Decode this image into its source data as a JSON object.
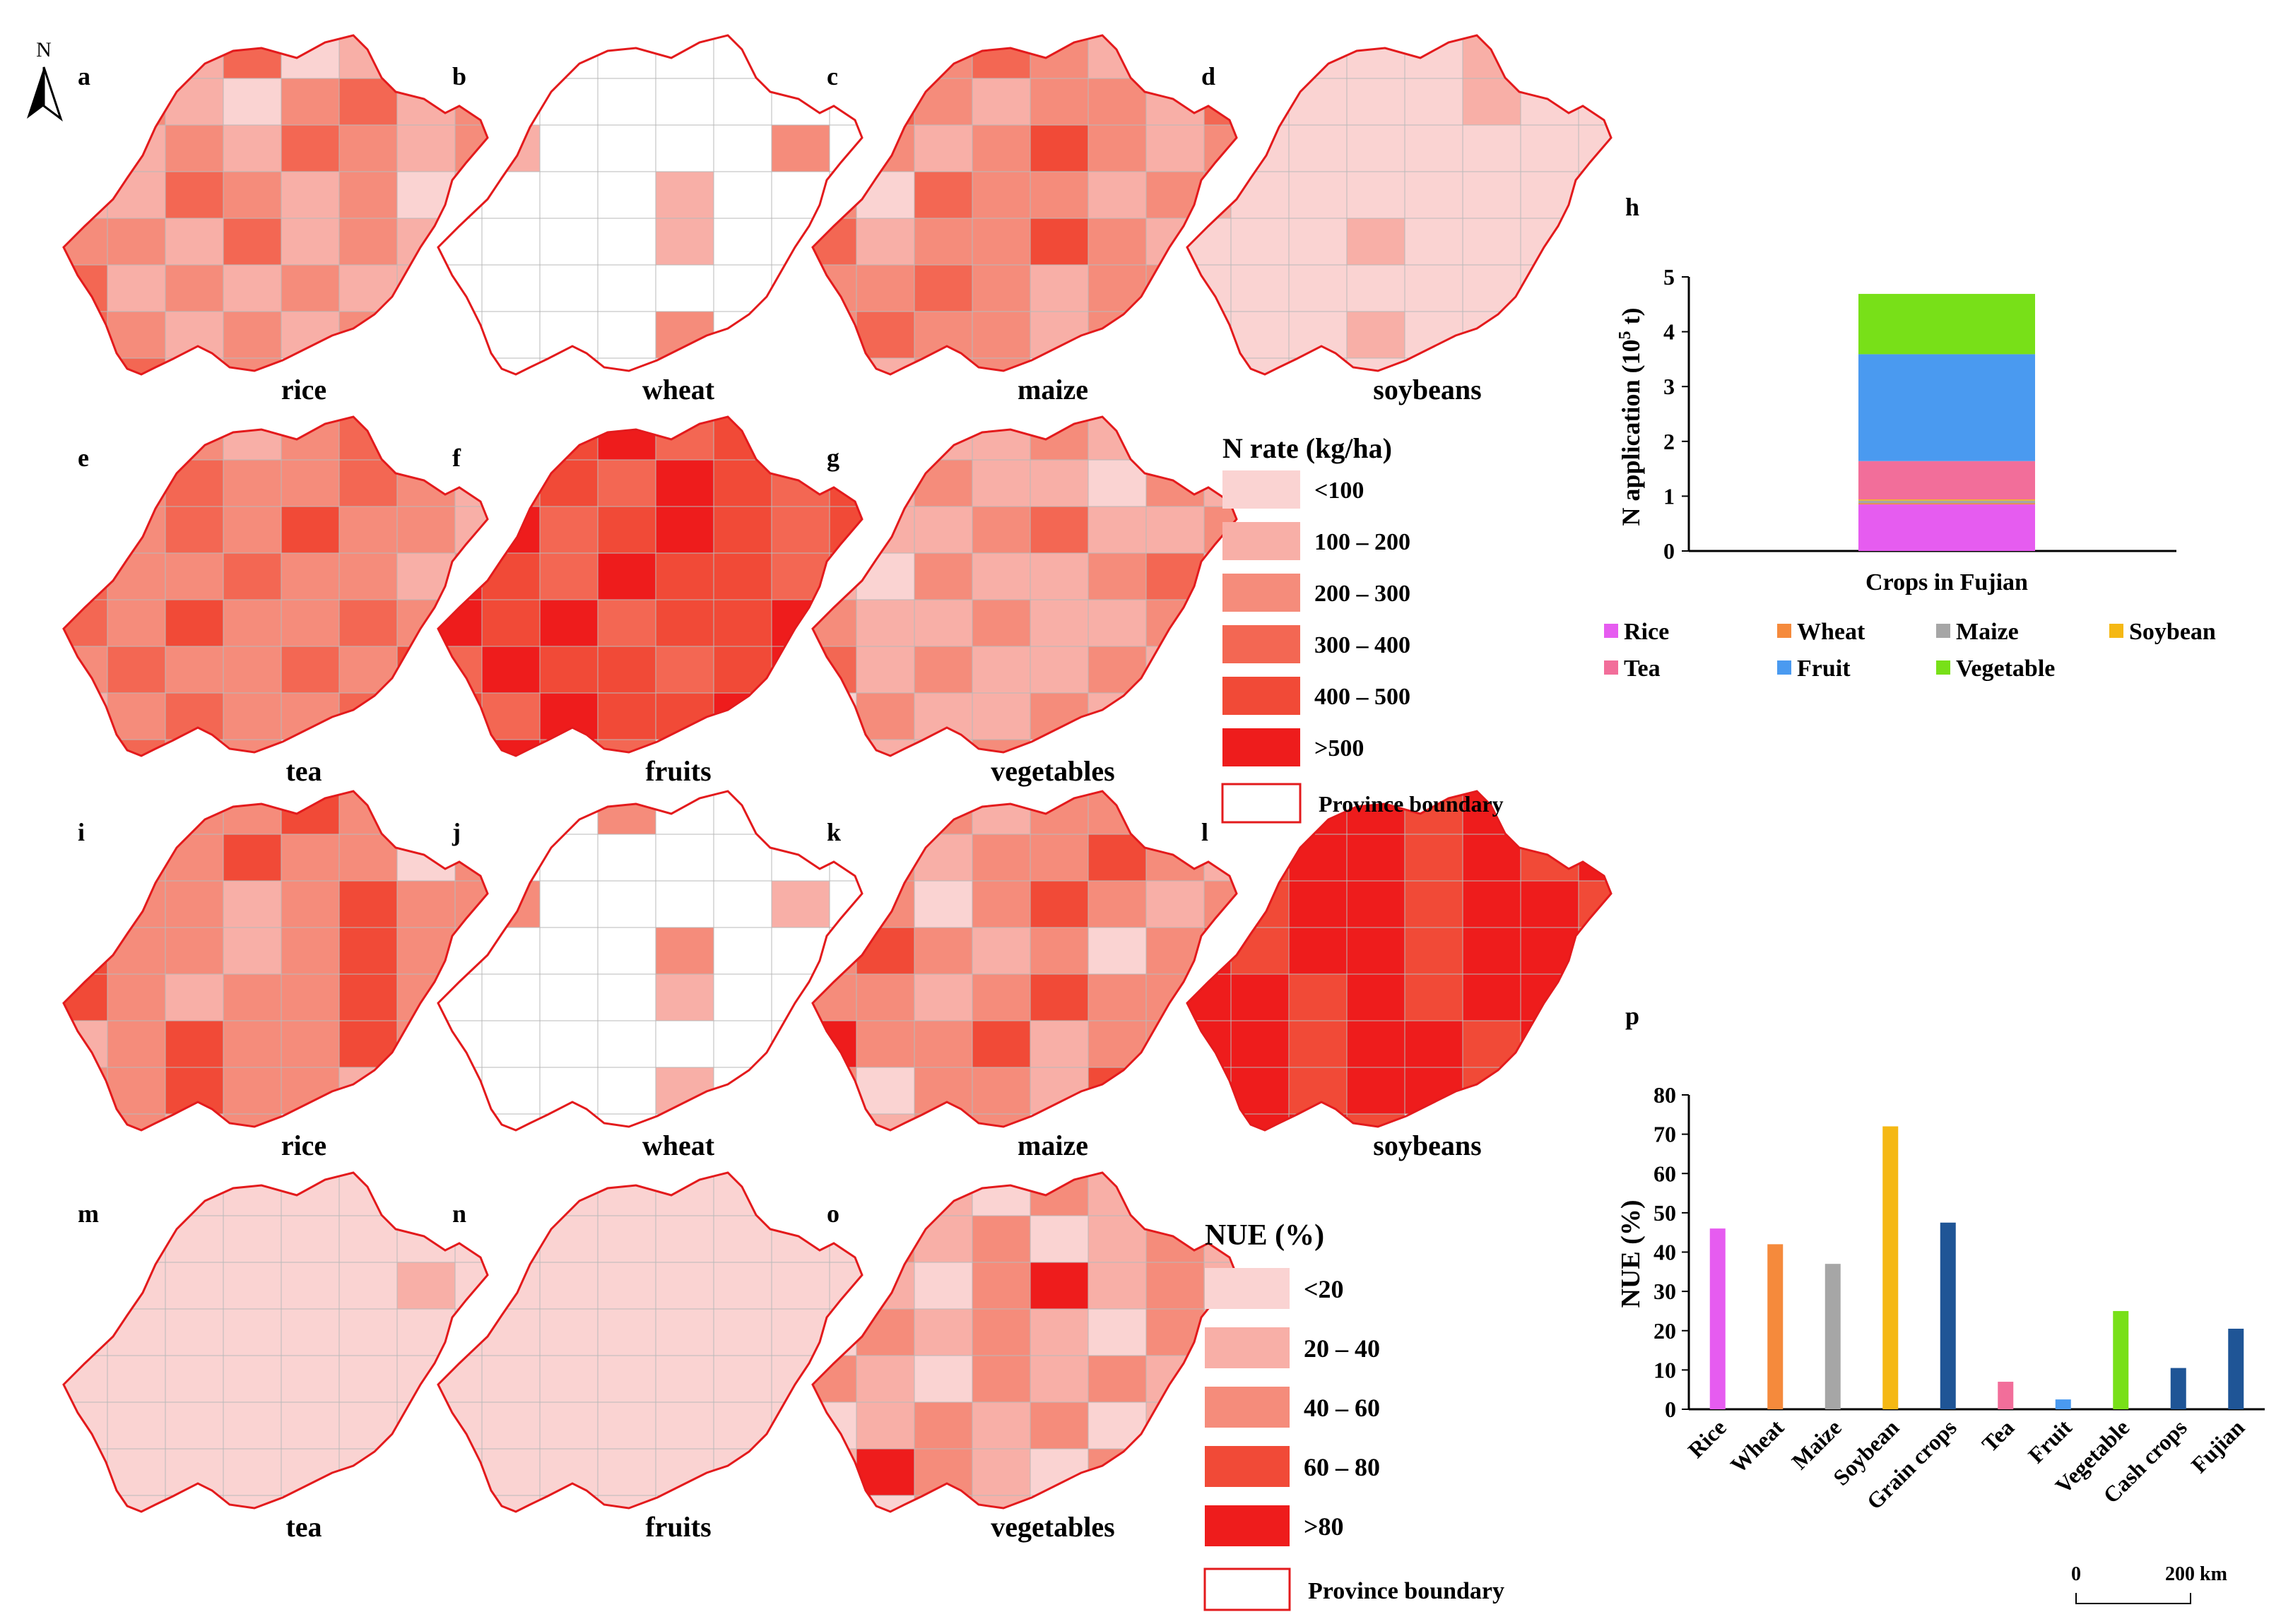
{
  "north_arrow": {
    "label": "N"
  },
  "maps": [
    {
      "panel": "a",
      "crop": "rice",
      "palette": "nrate",
      "levels": [
        1,
        2,
        1,
        3,
        0,
        1,
        2,
        1,
        3,
        2,
        1,
        0,
        2,
        3,
        1,
        2,
        1,
        1,
        2,
        1,
        3,
        2,
        1,
        2,
        1,
        1,
        3,
        2,
        1,
        2,
        0,
        1,
        2,
        2,
        1,
        3,
        1,
        2,
        1,
        2,
        3,
        1,
        2,
        1,
        2,
        1,
        1,
        2,
        3,
        2,
        1,
        2,
        1,
        2,
        1,
        2,
        1,
        3,
        1,
        2
      ]
    },
    {
      "panel": "b",
      "crop": "wheat",
      "palette": "nrate",
      "levels": [
        -1,
        -1,
        -1,
        -1,
        -1,
        -1,
        -1,
        -1,
        -1,
        -1,
        -1,
        -1,
        -1,
        -1,
        -1,
        -1,
        -1,
        1,
        -1,
        -1,
        -1,
        -1,
        2,
        -1,
        -1,
        -1,
        -1,
        -1,
        1,
        -1,
        -1,
        -1,
        -1,
        -1,
        -1,
        -1,
        1,
        -1,
        -1,
        -1,
        -1,
        -1,
        -1,
        -1,
        -1,
        -1,
        -1,
        1,
        -1,
        -1,
        -1,
        -1,
        2,
        -1,
        -1,
        -1,
        -1,
        -1,
        -1,
        -1
      ]
    },
    {
      "panel": "c",
      "crop": "maize",
      "palette": "nrate",
      "levels": [
        2,
        1,
        2,
        3,
        2,
        1,
        2,
        0,
        2,
        3,
        2,
        1,
        2,
        2,
        1,
        3,
        2,
        2,
        1,
        2,
        4,
        2,
        1,
        2,
        2,
        0,
        3,
        2,
        2,
        1,
        2,
        2,
        3,
        1,
        2,
        2,
        4,
        2,
        1,
        0,
        2,
        2,
        3,
        2,
        1,
        2,
        2,
        1,
        2,
        3,
        2,
        2,
        1,
        2,
        0,
        2,
        3,
        1,
        2,
        2
      ]
    },
    {
      "panel": "d",
      "crop": "soybeans",
      "palette": "nrate",
      "levels": [
        0,
        0,
        0,
        0,
        0,
        1,
        0,
        0,
        0,
        0,
        0,
        0,
        0,
        1,
        0,
        0,
        0,
        0,
        0,
        0,
        0,
        0,
        0,
        0,
        1,
        0,
        0,
        0,
        0,
        0,
        0,
        0,
        0,
        0,
        0,
        1,
        0,
        0,
        0,
        0,
        0,
        0,
        0,
        0,
        0,
        0,
        0,
        0,
        0,
        0,
        0,
        1,
        0,
        0,
        0,
        0,
        0,
        0,
        0,
        0
      ]
    },
    {
      "panel": "e",
      "crop": "tea",
      "palette": "nrate",
      "levels": [
        2,
        3,
        2,
        1,
        2,
        3,
        2,
        2,
        1,
        2,
        3,
        2,
        2,
        3,
        2,
        1,
        2,
        2,
        3,
        2,
        4,
        2,
        2,
        1,
        3,
        2,
        2,
        3,
        2,
        2,
        1,
        2,
        3,
        2,
        4,
        2,
        2,
        3,
        2,
        1,
        2,
        3,
        2,
        2,
        3,
        2,
        4,
        2,
        1,
        2,
        3,
        2,
        2,
        3,
        2,
        1,
        2,
        3,
        2,
        2
      ]
    },
    {
      "panel": "f",
      "crop": "fruits",
      "palette": "nrate",
      "levels": [
        4,
        3,
        4,
        5,
        3,
        4,
        3,
        4,
        5,
        3,
        4,
        3,
        5,
        4,
        3,
        4,
        4,
        5,
        3,
        4,
        5,
        4,
        3,
        4,
        5,
        4,
        3,
        5,
        4,
        4,
        3,
        4,
        5,
        4,
        5,
        3,
        4,
        4,
        5,
        4,
        3,
        5,
        4,
        4,
        3,
        4,
        5,
        4,
        4,
        3,
        5,
        4,
        4,
        5,
        3,
        4,
        4,
        5,
        4,
        3
      ]
    },
    {
      "panel": "g",
      "crop": "vegetables",
      "palette": "nrate",
      "levels": [
        1,
        2,
        1,
        1,
        2,
        1,
        0,
        2,
        1,
        1,
        2,
        1,
        1,
        0,
        2,
        1,
        2,
        1,
        1,
        2,
        3,
        1,
        1,
        2,
        1,
        0,
        2,
        1,
        1,
        2,
        3,
        1,
        2,
        1,
        1,
        2,
        1,
        1,
        2,
        1,
        3,
        1,
        2,
        1,
        1,
        2,
        1,
        1,
        0,
        2,
        1,
        1,
        2,
        1,
        3,
        1,
        2,
        1,
        1,
        2
      ]
    },
    {
      "panel": "i",
      "crop": "rice",
      "palette": "nue",
      "levels": [
        2,
        3,
        2,
        2,
        3,
        2,
        1,
        2,
        3,
        2,
        2,
        3,
        2,
        2,
        0,
        2,
        3,
        2,
        2,
        1,
        2,
        3,
        2,
        2,
        3,
        2,
        2,
        1,
        2,
        3,
        2,
        2,
        3,
        2,
        1,
        2,
        2,
        3,
        2,
        2,
        1,
        2,
        3,
        2,
        2,
        3,
        2,
        1,
        2,
        2,
        3,
        2,
        2,
        1,
        2,
        3,
        2,
        2,
        1,
        2
      ]
    },
    {
      "panel": "j",
      "crop": "wheat",
      "palette": "nue",
      "levels": [
        -1,
        -1,
        -1,
        2,
        -1,
        -1,
        -1,
        -1,
        -1,
        -1,
        -1,
        -1,
        -1,
        -1,
        -1,
        -1,
        -1,
        2,
        -1,
        -1,
        -1,
        -1,
        1,
        -1,
        -1,
        -1,
        -1,
        -1,
        2,
        -1,
        -1,
        -1,
        -1,
        -1,
        -1,
        -1,
        1,
        -1,
        -1,
        -1,
        -1,
        -1,
        -1,
        -1,
        -1,
        -1,
        -1,
        2,
        -1,
        -1,
        -1,
        -1,
        1,
        -1,
        -1,
        -1,
        -1,
        -1,
        -1,
        -1
      ]
    },
    {
      "panel": "k",
      "crop": "maize",
      "palette": "nue",
      "levels": [
        2,
        3,
        2,
        1,
        2,
        2,
        0,
        2,
        3,
        2,
        1,
        2,
        2,
        3,
        2,
        1,
        2,
        2,
        0,
        2,
        3,
        2,
        1,
        2,
        2,
        3,
        2,
        1,
        2,
        0,
        2,
        3,
        2,
        2,
        1,
        2,
        3,
        2,
        2,
        1,
        4,
        2,
        2,
        3,
        1,
        2,
        2,
        3,
        2,
        0,
        2,
        2,
        1,
        3,
        2,
        2,
        3,
        1,
        2,
        2
      ]
    },
    {
      "panel": "l",
      "crop": "soybeans",
      "palette": "nue",
      "levels": [
        4,
        3,
        4,
        4,
        3,
        4,
        3,
        4,
        4,
        3,
        4,
        4,
        3,
        4,
        3,
        4,
        4,
        3,
        4,
        4,
        3,
        4,
        4,
        3,
        4,
        3,
        4,
        4,
        3,
        4,
        4,
        3,
        4,
        4,
        3,
        4,
        3,
        4,
        4,
        3,
        4,
        4,
        3,
        4,
        4,
        3,
        4,
        3,
        4,
        4,
        3,
        4,
        4,
        3,
        4,
        4,
        3,
        4,
        4,
        3
      ]
    },
    {
      "panel": "m",
      "crop": "tea",
      "palette": "nue",
      "levels": [
        0,
        0,
        0,
        0,
        0,
        0,
        0,
        0,
        0,
        0,
        0,
        0,
        0,
        0,
        0,
        0,
        0,
        0,
        0,
        0,
        0,
        0,
        1,
        0,
        0,
        0,
        0,
        0,
        0,
        0,
        0,
        0,
        0,
        0,
        0,
        0,
        0,
        0,
        0,
        0,
        0,
        0,
        0,
        0,
        0,
        0,
        0,
        0,
        0,
        0,
        0,
        0,
        0,
        0,
        0,
        0,
        0,
        0,
        0,
        0
      ]
    },
    {
      "panel": "n",
      "crop": "fruits",
      "palette": "nue",
      "levels": [
        0,
        0,
        0,
        0,
        0,
        0,
        0,
        0,
        0,
        0,
        0,
        0,
        0,
        0,
        0,
        0,
        0,
        0,
        0,
        0,
        0,
        0,
        0,
        0,
        0,
        0,
        0,
        0,
        0,
        0,
        0,
        0,
        0,
        0,
        0,
        0,
        0,
        0,
        0,
        0,
        0,
        0,
        0,
        0,
        0,
        0,
        0,
        0,
        0,
        0,
        0,
        0,
        0,
        0,
        0,
        0,
        0,
        0,
        0,
        0
      ]
    },
    {
      "panel": "o",
      "crop": "vegetables",
      "palette": "nue",
      "levels": [
        1,
        2,
        1,
        0,
        2,
        1,
        2,
        0,
        1,
        2,
        1,
        2,
        0,
        1,
        2,
        1,
        2,
        1,
        0,
        2,
        4,
        1,
        2,
        1,
        0,
        2,
        1,
        2,
        1,
        0,
        2,
        1,
        2,
        1,
        0,
        2,
        1,
        2,
        1,
        2,
        0,
        1,
        2,
        1,
        2,
        0,
        1,
        2,
        1,
        4,
        2,
        1,
        0,
        2,
        1,
        2,
        1,
        0,
        2,
        1
      ]
    }
  ],
  "legend_nrate": {
    "title": "N rate (kg/ha)",
    "classes": [
      "<100",
      "100 – 200",
      "200 – 300",
      "300 – 400",
      "400 – 500",
      ">500"
    ],
    "colors": [
      "#FAD3D2",
      "#F8AFA7",
      "#F58C7B",
      "#F36753",
      "#F14A37",
      "#EE1C1C"
    ],
    "boundary_label": "Province boundary"
  },
  "legend_nue": {
    "title": "NUE (%)",
    "classes": [
      "<20",
      "20 – 40",
      "40 – 60",
      "60 – 80",
      ">80"
    ],
    "colors": [
      "#FAD3D2",
      "#F8AFA7",
      "#F58C7B",
      "#F14A37",
      "#EE1C1C"
    ],
    "boundary_label": "Province boundary"
  },
  "chart_data": [
    {
      "panel": "h",
      "type": "bar",
      "stacked": true,
      "categories": [
        "Crops in Fujian"
      ],
      "ylabel": "N application (10⁵ t)",
      "ylabel_main": "N application (10",
      "ylabel_sup": "5",
      "ylabel_tail": " t)",
      "ylim": [
        0,
        5
      ],
      "yticks": [
        "0",
        "1",
        "2",
        "3",
        "4",
        "5"
      ],
      "series": [
        {
          "name": "Rice",
          "values": [
            0.85
          ],
          "color": "#E65CF0"
        },
        {
          "name": "Wheat",
          "values": [
            0.02
          ],
          "color": "#F58A3C"
        },
        {
          "name": "Maize",
          "values": [
            0.05
          ],
          "color": "#A6A6A6"
        },
        {
          "name": "Soybean",
          "values": [
            0.02
          ],
          "color": "#F5B814"
        },
        {
          "name": "Tea",
          "values": [
            0.7
          ],
          "color": "#F26E9A"
        },
        {
          "name": "Fruit",
          "values": [
            1.95
          ],
          "color": "#4A9AF0"
        },
        {
          "name": "Vegetable",
          "values": [
            1.1
          ],
          "color": "#78E018"
        }
      ],
      "legend_labels": [
        "Rice",
        "Wheat",
        "Maize",
        "Soybean",
        "Tea",
        "Fruit",
        "Vegetable"
      ]
    },
    {
      "panel": "p",
      "type": "bar",
      "categories": [
        "Rice",
        "Wheat",
        "Maize",
        "Soybean",
        "Grain crops",
        "Tea",
        "Fruit",
        "Vegetable",
        "Cash crops",
        "Fujian"
      ],
      "values": [
        46,
        42,
        37,
        72,
        47.5,
        7,
        2.5,
        25,
        10.5,
        20.5
      ],
      "colors": [
        "#E65CF0",
        "#F58A3C",
        "#A6A6A6",
        "#F5B814",
        "#1F5596",
        "#F26E9A",
        "#4A9AF0",
        "#78E018",
        "#1F5596",
        "#1F5596"
      ],
      "ylabel": "NUE (%)",
      "ylim": [
        0,
        80
      ],
      "yticks": [
        "0",
        "10",
        "20",
        "30",
        "40",
        "50",
        "60",
        "70",
        "80"
      ]
    }
  ],
  "scale_bar": {
    "start_label": "0",
    "end_label": "200 km"
  }
}
